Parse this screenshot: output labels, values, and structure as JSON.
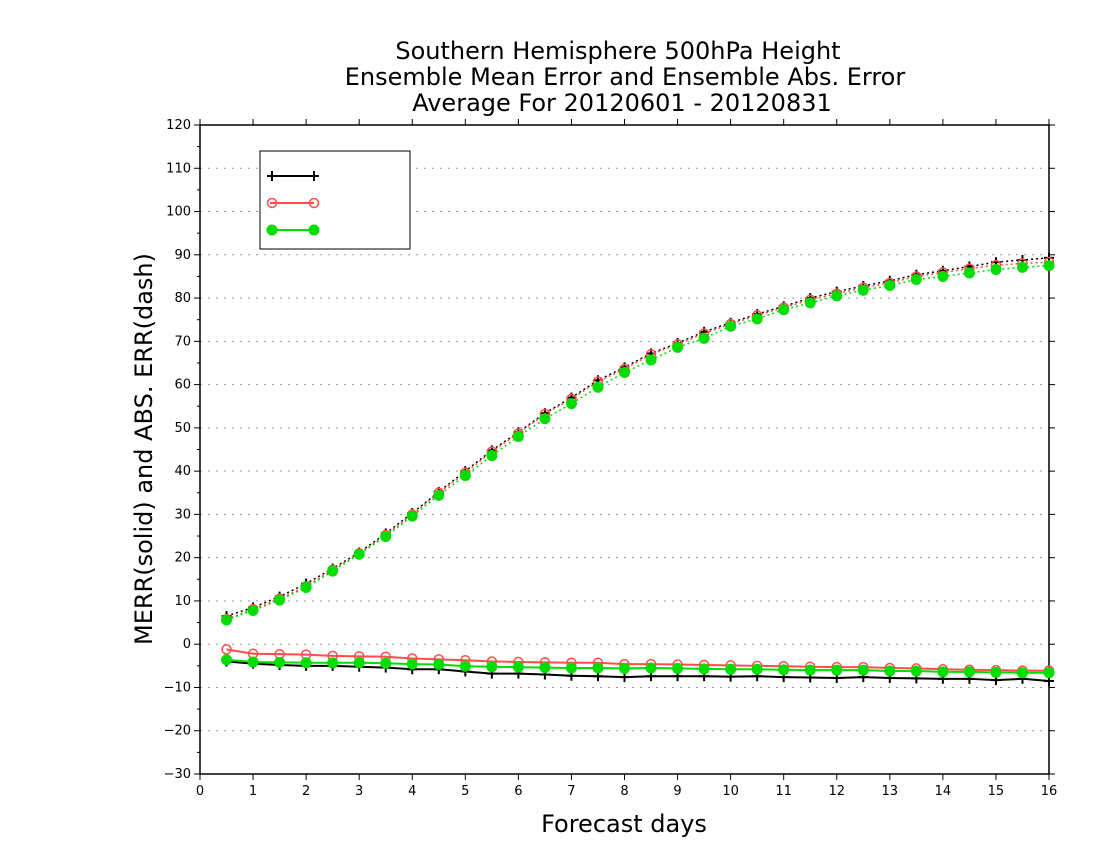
{
  "chart_data": {
    "type": "line",
    "title_lines": [
      "Southern Hemisphere 500hPa Height",
      "Ensemble Mean Error and Ensemble Abs. Error",
      "Average For 20120601 - 20120831"
    ],
    "xlabel": "Forecast days",
    "ylabel": "MERR(solid) and ABS. ERR(dash)",
    "xlim": [
      0,
      16
    ],
    "ylim": [
      -30,
      120
    ],
    "xticks": [
      0,
      1,
      2,
      3,
      4,
      5,
      6,
      7,
      8,
      9,
      10,
      11,
      12,
      13,
      14,
      15,
      16
    ],
    "yticks": [
      -30,
      -20,
      -10,
      0,
      10,
      20,
      30,
      40,
      50,
      60,
      70,
      80,
      90,
      100,
      110,
      120
    ],
    "grid": "horizontal-dotted",
    "legend_position": "top-left",
    "x": [
      0.5,
      1,
      1.5,
      2,
      2.5,
      3,
      3.5,
      4,
      4.5,
      5,
      5.5,
      6,
      6.5,
      7,
      7.5,
      8,
      8.5,
      9,
      9.5,
      10,
      10.5,
      11,
      11.5,
      12,
      12.5,
      13,
      13.5,
      14,
      14.5,
      15,
      15.5,
      16
    ],
    "series": [
      {
        "name": "",
        "color": "#000000",
        "marker": "plus",
        "mean_error": [
          -4,
          -4.5,
          -4.8,
          -5,
          -5,
          -5.2,
          -5.4,
          -5.8,
          -5.8,
          -6.3,
          -6.8,
          -6.8,
          -7,
          -7.3,
          -7.4,
          -7.6,
          -7.4,
          -7.4,
          -7.4,
          -7.5,
          -7.4,
          -7.6,
          -7.7,
          -7.8,
          -7.6,
          -7.8,
          -7.9,
          -8,
          -8,
          -8.3,
          -8,
          -8.5
        ],
        "abs_error": [
          6.5,
          8.5,
          11,
          14,
          17.5,
          21.2,
          25.6,
          30.3,
          35.2,
          40,
          44.8,
          49,
          53.4,
          57,
          61,
          64,
          67.2,
          69.6,
          72.2,
          74.3,
          76.3,
          78.1,
          80,
          81.5,
          82.8,
          84,
          85.4,
          86.3,
          87.3,
          88.3,
          88.8,
          89.3
        ]
      },
      {
        "name": "",
        "color": "#ff4d4d",
        "marker": "open-circle",
        "mean_error": [
          -1.2,
          -2.2,
          -2.3,
          -2.4,
          -2.7,
          -2.8,
          -2.9,
          -3.3,
          -3.5,
          -3.7,
          -4,
          -4.1,
          -4.2,
          -4.3,
          -4.3,
          -4.6,
          -4.6,
          -4.7,
          -4.8,
          -4.9,
          -5,
          -5.1,
          -5.2,
          -5.3,
          -5.3,
          -5.5,
          -5.6,
          -5.8,
          -5.9,
          -6,
          -6.1,
          -6.1
        ],
        "abs_error": [
          5.8,
          8.1,
          10.5,
          13.4,
          17.2,
          21,
          25.2,
          30,
          35,
          39.6,
          44.5,
          48.7,
          53.2,
          56.7,
          60.7,
          63.6,
          67,
          69.3,
          71.8,
          74,
          76,
          77.8,
          79.6,
          81,
          82.4,
          83.5,
          85,
          85.9,
          86.8,
          87.6,
          88,
          88.3
        ]
      },
      {
        "name": "",
        "color": "#00dd00",
        "marker": "filled-circle",
        "mean_error": [
          -3.6,
          -4.1,
          -4.2,
          -4.3,
          -4.3,
          -4.3,
          -4.4,
          -4.6,
          -4.7,
          -5.1,
          -5.2,
          -5.3,
          -5.4,
          -5.5,
          -5.5,
          -5.6,
          -5.5,
          -5.6,
          -5.7,
          -5.8,
          -5.8,
          -5.9,
          -6,
          -6,
          -6,
          -6.2,
          -6.2,
          -6.4,
          -6.4,
          -6.5,
          -6.6,
          -6.6
        ],
        "abs_error": [
          5.6,
          7.8,
          10.2,
          13.1,
          16.9,
          20.8,
          24.9,
          29.6,
          34.4,
          39,
          43.6,
          48,
          52.1,
          55.6,
          59.4,
          62.8,
          65.7,
          68.6,
          70.7,
          73.5,
          75.2,
          77.3,
          78.9,
          80.5,
          81.8,
          82.9,
          84.3,
          85,
          85.8,
          86.6,
          87.1,
          87.5
        ]
      }
    ]
  }
}
